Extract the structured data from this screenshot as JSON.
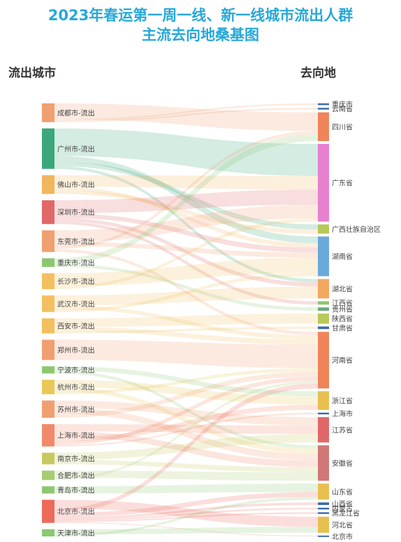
{
  "chart_data": {
    "type": "sankey",
    "title_lines": [
      "2023年春运第一周一线、新一线城市流出人群",
      "主流去向地桑基图"
    ],
    "left_header": "流出城市",
    "right_header": "去向地",
    "source_nodes": [
      {
        "name": "成都市-流出",
        "color": "#f0a070"
      },
      {
        "name": "广州市-流出",
        "color": "#3aa87a"
      },
      {
        "name": "佛山市-流出",
        "color": "#f3b55e"
      },
      {
        "name": "深圳市-流出",
        "color": "#e06868"
      },
      {
        "name": "东莞市-流出",
        "color": "#f0a070"
      },
      {
        "name": "重庆市-流出",
        "color": "#8cc870"
      },
      {
        "name": "长沙市-流出",
        "color": "#f3c060"
      },
      {
        "name": "武汉市-流出",
        "color": "#f3c060"
      },
      {
        "name": "西安市-流出",
        "color": "#f3c060"
      },
      {
        "name": "郑州市-流出",
        "color": "#f0a070"
      },
      {
        "name": "宁波市-流出",
        "color": "#8cc870"
      },
      {
        "name": "杭州市-流出",
        "color": "#e8c858"
      },
      {
        "name": "苏州市-流出",
        "color": "#f0a070"
      },
      {
        "name": "上海市-流出",
        "color": "#f08a6a"
      },
      {
        "name": "南京市-流出",
        "color": "#c8c860"
      },
      {
        "name": "合肥市-流出",
        "color": "#a8cc70"
      },
      {
        "name": "青岛市-流出",
        "color": "#8cc870"
      },
      {
        "name": "北京市-流出",
        "color": "#ec6a5a"
      },
      {
        "name": "天津市-流出",
        "color": "#8cc870"
      }
    ],
    "target_nodes": [
      {
        "name": "重庆市",
        "color": "#3a6aa8"
      },
      {
        "name": "云南省",
        "color": "#3a6aa8"
      },
      {
        "name": "四川省",
        "color": "#f0845a"
      },
      {
        "name": "广东省",
        "color": "#e880d0"
      },
      {
        "name": "广西壮族自治区",
        "color": "#b8c85a"
      },
      {
        "name": "湖南省",
        "color": "#6aaad8"
      },
      {
        "name": "湖北省",
        "color": "#f3a860"
      },
      {
        "name": "江西省",
        "color": "#8cc870"
      },
      {
        "name": "贵州省",
        "color": "#6aaa80"
      },
      {
        "name": "陕西省",
        "color": "#b8c85a"
      },
      {
        "name": "甘肃省",
        "color": "#3a6aa8"
      },
      {
        "name": "河南省",
        "color": "#f0845a"
      },
      {
        "name": "浙江省",
        "color": "#e8c050"
      },
      {
        "name": "上海市",
        "color": "#3a6aa8"
      },
      {
        "name": "江苏省",
        "color": "#e06868"
      },
      {
        "name": "安徽省",
        "color": "#d07878"
      },
      {
        "name": "山东省",
        "color": "#e8c050"
      },
      {
        "name": "山西省",
        "color": "#3a6aa8"
      },
      {
        "name": "内蒙古",
        "color": "#3a6aa8"
      },
      {
        "name": "黑龙江省",
        "color": "#3a6aa8"
      },
      {
        "name": "河北省",
        "color": "#e8c050"
      },
      {
        "name": "北京市",
        "color": "#3a6aa8"
      }
    ],
    "links": [
      {
        "source": "成都市-流出",
        "target": "四川省",
        "value": 22
      },
      {
        "source": "成都市-流出",
        "target": "重庆市",
        "value": 2
      },
      {
        "source": "成都市-流出",
        "target": "云南省",
        "value": 2
      },
      {
        "source": "广州市-流出",
        "target": "广东省",
        "value": 38
      },
      {
        "source": "广州市-流出",
        "target": "湖南省",
        "value": 8
      },
      {
        "source": "广州市-流出",
        "target": "广西壮族自治区",
        "value": 6
      },
      {
        "source": "广州市-流出",
        "target": "湖北省",
        "value": 4
      },
      {
        "source": "佛山市-流出",
        "target": "广东省",
        "value": 16
      },
      {
        "source": "佛山市-流出",
        "target": "湖南省",
        "value": 5
      },
      {
        "source": "佛山市-流出",
        "target": "广西壮族自治区",
        "value": 5
      },
      {
        "source": "深圳市-流出",
        "target": "广东省",
        "value": 18
      },
      {
        "source": "深圳市-流出",
        "target": "湖南省",
        "value": 6
      },
      {
        "source": "深圳市-流出",
        "target": "湖北省",
        "value": 5
      },
      {
        "source": "深圳市-流出",
        "target": "江西省",
        "value": 4
      },
      {
        "source": "东莞市-流出",
        "target": "广东省",
        "value": 16
      },
      {
        "source": "东莞市-流出",
        "target": "湖南省",
        "value": 6
      },
      {
        "source": "东莞市-流出",
        "target": "四川省",
        "value": 4
      },
      {
        "source": "东莞市-流出",
        "target": "河南省",
        "value": 4
      },
      {
        "source": "重庆市-流出",
        "target": "四川省",
        "value": 8
      },
      {
        "source": "重庆市-流出",
        "target": "贵州省",
        "value": 4
      },
      {
        "source": "长沙市-流出",
        "target": "湖南省",
        "value": 18
      },
      {
        "source": "长沙市-流出",
        "target": "广东省",
        "value": 4
      },
      {
        "source": "武汉市-流出",
        "target": "湖北省",
        "value": 14
      },
      {
        "source": "武汉市-流出",
        "target": "河南省",
        "value": 5
      },
      {
        "source": "武汉市-流出",
        "target": "湖南省",
        "value": 4
      },
      {
        "source": "西安市-流出",
        "target": "陕西省",
        "value": 12
      },
      {
        "source": "西安市-流出",
        "target": "河南省",
        "value": 6
      },
      {
        "source": "西安市-流出",
        "target": "甘肃省",
        "value": 3
      },
      {
        "source": "郑州市-流出",
        "target": "河南省",
        "value": 28
      },
      {
        "source": "宁波市-流出",
        "target": "浙江省",
        "value": 6
      },
      {
        "source": "宁波市-流出",
        "target": "安徽省",
        "value": 4
      },
      {
        "source": "杭州市-流出",
        "target": "浙江省",
        "value": 10
      },
      {
        "source": "杭州市-流出",
        "target": "安徽省",
        "value": 6
      },
      {
        "source": "杭州市-流出",
        "target": "河南省",
        "value": 4
      },
      {
        "source": "苏州市-流出",
        "target": "江苏省",
        "value": 10
      },
      {
        "source": "苏州市-流出",
        "target": "安徽省",
        "value": 8
      },
      {
        "source": "苏州市-流出",
        "target": "河南省",
        "value": 6
      },
      {
        "source": "上海市-流出",
        "target": "江苏省",
        "value": 10
      },
      {
        "source": "上海市-流出",
        "target": "安徽省",
        "value": 8
      },
      {
        "source": "上海市-流出",
        "target": "浙江省",
        "value": 6
      },
      {
        "source": "上海市-流出",
        "target": "河南省",
        "value": 5
      },
      {
        "source": "上海市-流出",
        "target": "上海市",
        "value": 2
      },
      {
        "source": "南京市-流出",
        "target": "江苏省",
        "value": 10
      },
      {
        "source": "南京市-流出",
        "target": "安徽省",
        "value": 6
      },
      {
        "source": "合肥市-流出",
        "target": "安徽省",
        "value": 10
      },
      {
        "source": "合肥市-流出",
        "target": "河南省",
        "value": 3
      },
      {
        "source": "青岛市-流出",
        "target": "山东省",
        "value": 10
      },
      {
        "source": "北京市-流出",
        "target": "河北省",
        "value": 12
      },
      {
        "source": "北京市-流出",
        "target": "河南省",
        "value": 6
      },
      {
        "source": "北京市-流出",
        "target": "山东省",
        "value": 6
      },
      {
        "source": "北京市-流出",
        "target": "山西省",
        "value": 3
      },
      {
        "source": "北京市-流出",
        "target": "内蒙古",
        "value": 2
      },
      {
        "source": "北京市-流出",
        "target": "黑龙江省",
        "value": 2
      },
      {
        "source": "北京市-流出",
        "target": "北京市",
        "value": 1
      },
      {
        "source": "天津市-流出",
        "target": "河北省",
        "value": 7
      },
      {
        "source": "天津市-流出",
        "target": "山东省",
        "value": 3
      }
    ]
  }
}
